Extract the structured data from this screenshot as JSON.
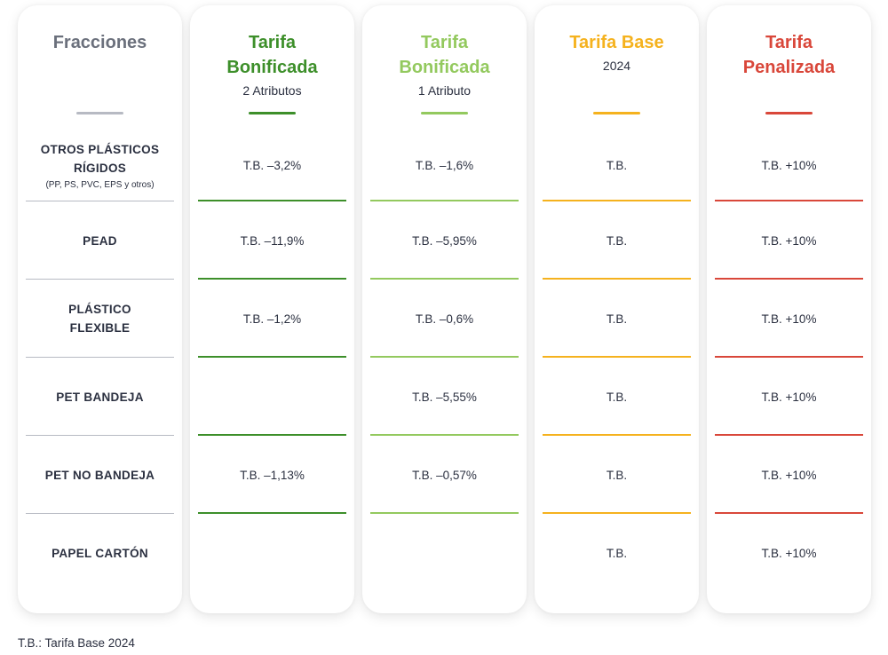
{
  "columns": [
    {
      "key": "fracciones",
      "title": "Fracciones",
      "subtitle": "",
      "color": "#6b707c",
      "line_color": "#b7bac3"
    },
    {
      "key": "bonificada2",
      "title": "Tarifa Bonificada",
      "subtitle": "2 Atributos",
      "color": "#3d8f2a",
      "line_color": "#3d8f2a"
    },
    {
      "key": "bonificada1",
      "title": "Tarifa Bonificada",
      "subtitle": "1 Atributo",
      "color": "#93c95e",
      "line_color": "#93c95e"
    },
    {
      "key": "base",
      "title": "Tarifa Base",
      "subtitle": "2024",
      "color": "#f5b21e",
      "line_color": "#f5b21e"
    },
    {
      "key": "penalizada",
      "title": "Tarifa Penalizada",
      "subtitle": "",
      "color": "#d9473a",
      "line_color": "#d9473a"
    }
  ],
  "rows": [
    {
      "label": "OTROS PLÁSTICOS RÍGIDOS",
      "note": "(PP, PS, PVC, EPS y otros)",
      "values": [
        "T.B. –3,2%",
        "T.B. –1,6%",
        "T.B.",
        "T.B. +10%"
      ]
    },
    {
      "label": "PEAD",
      "note": "",
      "values": [
        "T.B. –11,9%",
        "T.B. –5,95%",
        "T.B.",
        "T.B. +10%"
      ]
    },
    {
      "label": "PLÁSTICO FLEXIBLE",
      "note": "",
      "values": [
        "T.B. –1,2%",
        "T.B. –0,6%",
        "T.B.",
        "T.B. +10%"
      ]
    },
    {
      "label": "PET BANDEJA",
      "note": "",
      "values": [
        "",
        "T.B. –5,55%",
        "T.B.",
        "T.B. +10%"
      ]
    },
    {
      "label": "PET NO BANDEJA",
      "note": "",
      "values": [
        "T.B. –1,13%",
        "T.B. –0,57%",
        "T.B.",
        "T.B. +10%"
      ]
    },
    {
      "label": "PAPEL CARTÓN",
      "note": "",
      "values": [
        "",
        "",
        "T.B.",
        "T.B. +10%"
      ]
    }
  ],
  "footnote": "T.B.: Tarifa Base 2024"
}
